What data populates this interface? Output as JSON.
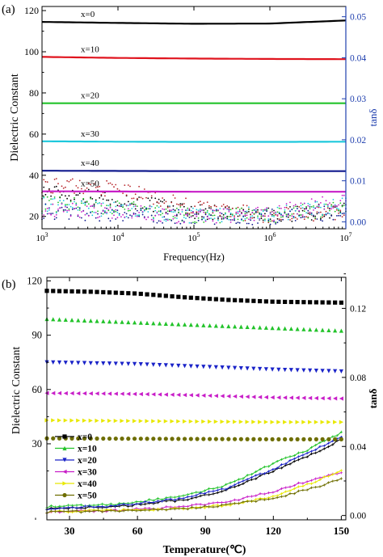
{
  "chart_data": [
    {
      "panel_label": "(a)",
      "type": "line",
      "xlabel": "Frequency(Hz)",
      "ylabel": "Dielectric Constant",
      "y2label": "tanδ",
      "xscale": "log",
      "xlim": [
        1000,
        10000000
      ],
      "ylim": [
        14,
        122
      ],
      "y2lim": [
        -0.0017,
        0.0525
      ],
      "xticks": [
        {
          "base": "10",
          "exp": "3",
          "value": 1000
        },
        {
          "base": "10",
          "exp": "4",
          "value": 10000
        },
        {
          "base": "10",
          "exp": "5",
          "value": 100000
        },
        {
          "base": "10",
          "exp": "6",
          "value": 1000000
        },
        {
          "base": "10",
          "exp": "7",
          "value": 10000000
        }
      ],
      "yticks": [
        "20",
        "40",
        "60",
        "80",
        "100",
        "120"
      ],
      "y2ticks": [
        "0.00",
        "0.01",
        "0.02",
        "0.03",
        "0.04",
        "0.05"
      ],
      "y2_color": "#1f3fae",
      "x": [
        1000,
        10000,
        100000,
        1000000,
        10000000
      ],
      "series": [
        {
          "name": "x=0",
          "color": "#000000",
          "values": [
            114.5,
            114,
            113.6,
            113.7,
            115.2
          ]
        },
        {
          "name": "x=10",
          "color": "#e0141e",
          "values": [
            97.5,
            97,
            96.7,
            96.5,
            96.4
          ]
        },
        {
          "name": "x=20",
          "color": "#22c32a",
          "values": [
            75,
            75,
            75,
            75,
            75
          ]
        },
        {
          "name": "x=30",
          "color": "#1ec8dc",
          "values": [
            56.5,
            56.3,
            56.2,
            56.2,
            56.3
          ]
        },
        {
          "name": "x=40",
          "color": "#101a8e",
          "values": [
            42.2,
            42.1,
            42,
            42,
            42
          ]
        },
        {
          "name": "x=50",
          "color": "#c81ec8",
          "values": [
            32.2,
            32.1,
            32,
            32,
            32
          ]
        }
      ],
      "tan_series": [
        {
          "name": "x=0",
          "color": "#000000",
          "values": [
            0.0075,
            0.0055,
            0.0025,
            0.0015,
            0.003
          ]
        },
        {
          "name": "x=10",
          "color": "#b8262a",
          "values": [
            0.009,
            0.008,
            0.0035,
            0.0015,
            0.0025
          ]
        },
        {
          "name": "x=20",
          "color": "#22c32a",
          "values": [
            0.0045,
            0.0035,
            0.0015,
            0.0015,
            0.0035
          ]
        },
        {
          "name": "x=30",
          "color": "#1ec8dc",
          "values": [
            0.004,
            0.003,
            0.0015,
            0.0018,
            0.004
          ]
        },
        {
          "name": "x=40",
          "color": "#101a8e",
          "values": [
            0.0025,
            0.002,
            0.001,
            0.0012,
            0.0025
          ]
        },
        {
          "name": "x=50",
          "color": "#c81ec8",
          "values": [
            0.003,
            0.0025,
            0.0012,
            0.002,
            0.0055
          ]
        }
      ]
    },
    {
      "panel_label": "(b)",
      "type": "line",
      "xlabel": "Temperature(℃)",
      "ylabel": "Dielectric Constant",
      "y2label": "tanδ",
      "xlim": [
        20,
        152
      ],
      "ylim": [
        -12,
        122
      ],
      "y2lim": [
        -0.0025,
        0.138
      ],
      "xticks": [
        "30",
        "60",
        "90",
        "120",
        "150"
      ],
      "yticks": [
        "30",
        "60",
        "90",
        "120"
      ],
      "y2ticks": [
        "0.00",
        "0.04",
        "0.08",
        "0.12"
      ],
      "legend_position": "lower-left",
      "x": [
        20,
        40,
        60,
        80,
        100,
        120,
        150
      ],
      "series": [
        {
          "name": "x=0",
          "marker": "square",
          "color": "#000000",
          "values": [
            114.5,
            114,
            113,
            111,
            109.5,
            108.5,
            108
          ]
        },
        {
          "name": "x=10",
          "marker": "triangle-up",
          "color": "#22c32a",
          "values": [
            99,
            98,
            97,
            96,
            95,
            94,
            92.5
          ]
        },
        {
          "name": "x=20",
          "marker": "triangle-down",
          "color": "#1a23c8",
          "values": [
            75,
            74.5,
            74,
            73,
            72,
            71,
            70
          ]
        },
        {
          "name": "x=30",
          "marker": "triangle-left",
          "color": "#c81ec8",
          "values": [
            58,
            57.8,
            57.5,
            57,
            56.3,
            55.6,
            55
          ]
        },
        {
          "name": "x=40",
          "marker": "triangle-right",
          "color": "#e8e800",
          "values": [
            43,
            42.8,
            42.6,
            42.4,
            42.2,
            42,
            42
          ]
        },
        {
          "name": "x=50",
          "marker": "circle",
          "color": "#6e6e00",
          "values": [
            33,
            32.9,
            32.8,
            32.7,
            32.6,
            32.5,
            32.5
          ]
        }
      ],
      "tan_series": [
        {
          "name": "x=0",
          "color": "#000000",
          "x": [
            20,
            50,
            80,
            100,
            120,
            135,
            150
          ],
          "values": [
            0.004,
            0.005,
            0.009,
            0.015,
            0.026,
            0.034,
            0.044
          ]
        },
        {
          "name": "x=10",
          "color": "#22c32a",
          "x": [
            20,
            50,
            80,
            100,
            120,
            135,
            150
          ],
          "values": [
            0.005,
            0.0065,
            0.011,
            0.018,
            0.03,
            0.038,
            0.048
          ]
        },
        {
          "name": "x=20",
          "color": "#1a23c8",
          "x": [
            20,
            50,
            80,
            100,
            120,
            135,
            150
          ],
          "values": [
            0.004,
            0.0055,
            0.01,
            0.016,
            0.027,
            0.036,
            0.046
          ]
        },
        {
          "name": "x=30",
          "color": "#c81ec8",
          "x": [
            20,
            50,
            80,
            100,
            120,
            135,
            150
          ],
          "values": [
            0.002,
            0.003,
            0.005,
            0.008,
            0.014,
            0.02,
            0.025
          ]
        },
        {
          "name": "x=40",
          "color": "#e8e800",
          "x": [
            20,
            50,
            80,
            100,
            120,
            135,
            150
          ],
          "values": [
            0.002,
            0.003,
            0.004,
            0.006,
            0.011,
            0.018,
            0.026
          ]
        },
        {
          "name": "x=50",
          "color": "#6e6e00",
          "x": [
            20,
            50,
            80,
            100,
            120,
            135,
            150
          ],
          "values": [
            0.002,
            0.0025,
            0.004,
            0.006,
            0.01,
            0.015,
            0.021
          ]
        }
      ]
    }
  ]
}
